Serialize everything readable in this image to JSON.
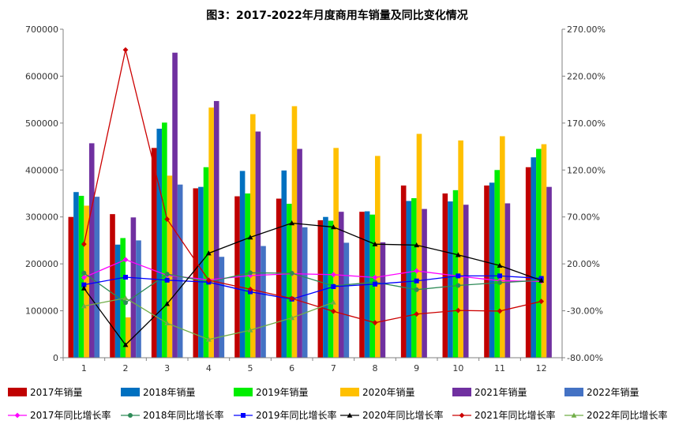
{
  "chart_data": {
    "type": "bar+line",
    "title": "图3：2017-2022年月度商用车销量及同比变化情况",
    "categories": [
      "1",
      "2",
      "3",
      "4",
      "5",
      "6",
      "7",
      "8",
      "9",
      "10",
      "11",
      "12"
    ],
    "left_axis": {
      "ylim": [
        0,
        700000
      ],
      "ticks": [
        0,
        100000,
        200000,
        300000,
        400000,
        500000,
        600000,
        700000
      ],
      "tick_labels": [
        "0",
        "100000",
        "200000",
        "300000",
        "400000",
        "500000",
        "600000",
        "700000"
      ]
    },
    "right_axis": {
      "ylim": [
        -80,
        270
      ],
      "ticks": [
        -80,
        -30,
        20,
        70,
        120,
        170,
        220,
        270
      ],
      "tick_labels": [
        "-80.00%",
        "-30.00%",
        "20.00%",
        "70.00%",
        "120.00%",
        "170.00%",
        "220.00%",
        "270.00%"
      ]
    },
    "bar_series": [
      {
        "name": "2017年销量",
        "color": "#C00000",
        "values": [
          300000,
          306000,
          447000,
          361000,
          344000,
          339000,
          293000,
          311000,
          367000,
          350000,
          367000,
          406000
        ]
      },
      {
        "name": "2018年销量",
        "color": "#0070C0",
        "values": [
          353000,
          241000,
          488000,
          364000,
          398000,
          399000,
          300000,
          312000,
          334000,
          333000,
          373000,
          427000
        ]
      },
      {
        "name": "2019年销量",
        "color": "#00EE00",
        "values": [
          345000,
          255000,
          501000,
          406000,
          350000,
          328000,
          292000,
          305000,
          340000,
          357000,
          400000,
          445000
        ]
      },
      {
        "name": "2020年销量",
        "color": "#FFC000",
        "values": [
          324000,
          86000,
          388000,
          533000,
          519000,
          536000,
          447000,
          430000,
          477000,
          463000,
          472000,
          455000
        ]
      },
      {
        "name": "2021年销量",
        "color": "#7030A0",
        "values": [
          457000,
          299000,
          650000,
          547000,
          482000,
          445000,
          311000,
          246000,
          317000,
          326000,
          329000,
          364000
        ]
      },
      {
        "name": "2022年销量",
        "color": "#4472C4",
        "values": [
          343000,
          250000,
          369000,
          215000,
          238000,
          278000,
          245000,
          0,
          0,
          0,
          0,
          0
        ]
      }
    ],
    "line_series": [
      {
        "name": "2017年同比增长率",
        "color": "#FF00FF",
        "marker": "diamond",
        "values": [
          5.5,
          24.5,
          7.8,
          3.0,
          7.5,
          9.5,
          8.5,
          5.5,
          12.5,
          7.0,
          2.0,
          1.3
        ]
      },
      {
        "name": "2018年同比增长率",
        "color": "#2E8B57",
        "marker": "circle",
        "values": [
          10.2,
          -21.3,
          9.1,
          0.8,
          10.5,
          10.0,
          -3.5,
          0.5,
          -7.5,
          -3.0,
          0.0,
          2.5
        ]
      },
      {
        "name": "2019年同比增长率",
        "color": "#0000FF",
        "marker": "square",
        "values": [
          -2.3,
          5.8,
          2.6,
          0.5,
          -9.8,
          -17.6,
          -4.3,
          -1.6,
          1.8,
          7.2,
          7.2,
          4.5
        ]
      },
      {
        "name": "2020年同比增长率",
        "color": "#000000",
        "marker": "triangle",
        "values": [
          -6.0,
          -66.3,
          -22.6,
          31.3,
          48.3,
          63.4,
          59.2,
          41.0,
          40.0,
          29.6,
          18.2,
          2.3
        ]
      },
      {
        "name": "2021年同比增长率",
        "color": "#CC0000",
        "marker": "diamond",
        "values": [
          41.0,
          248.0,
          67.6,
          2.5,
          -7.0,
          -16.9,
          -30.6,
          -42.7,
          -33.5,
          -29.6,
          -30.3,
          -20.0
        ]
      },
      {
        "name": "2022年同比增长率",
        "color": "#70AD47",
        "marker": "triangle",
        "values": [
          -25.0,
          -16.4,
          -43.2,
          -60.6,
          -50.7,
          -37.5,
          -21.0,
          null,
          null,
          null,
          null,
          null
        ]
      }
    ]
  }
}
